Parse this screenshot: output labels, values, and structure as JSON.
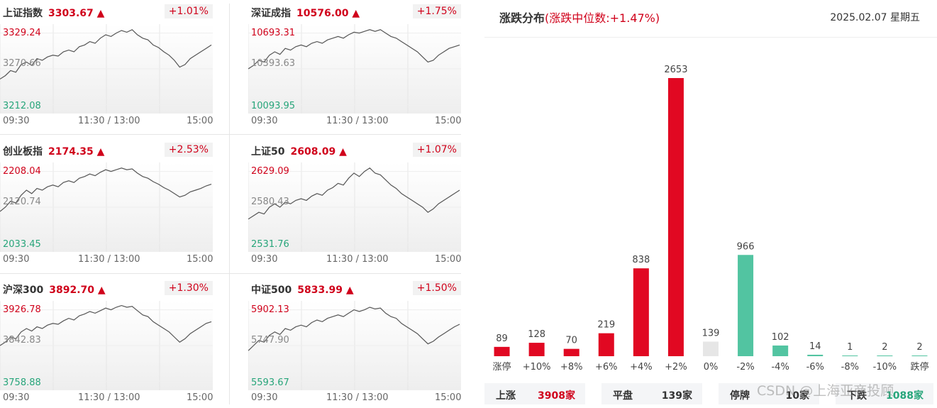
{
  "indices": [
    {
      "name": "上证指数",
      "price": "3303.67",
      "arrow": "▲",
      "pct": "+1.01%",
      "high": "3329.24",
      "mid": "3270.66",
      "low": "3212.08",
      "series": [
        0.38,
        0.42,
        0.48,
        0.46,
        0.55,
        0.58,
        0.54,
        0.62,
        0.6,
        0.64,
        0.66,
        0.65,
        0.7,
        0.72,
        0.7,
        0.76,
        0.78,
        0.82,
        0.8,
        0.86,
        0.9,
        0.88,
        0.92,
        0.95,
        0.93,
        0.96,
        0.9,
        0.86,
        0.84,
        0.78,
        0.75,
        0.7,
        0.66,
        0.6,
        0.52,
        0.55,
        0.62,
        0.66,
        0.7,
        0.74,
        0.78
      ]
    },
    {
      "name": "深证成指",
      "price": "10576.00",
      "arrow": "▲",
      "pct": "+1.75%",
      "high": "10693.31",
      "mid": "10393.63",
      "low": "10093.95",
      "series": [
        0.5,
        0.54,
        0.6,
        0.58,
        0.66,
        0.7,
        0.67,
        0.74,
        0.72,
        0.76,
        0.78,
        0.76,
        0.8,
        0.82,
        0.8,
        0.84,
        0.86,
        0.88,
        0.86,
        0.9,
        0.93,
        0.92,
        0.94,
        0.96,
        0.94,
        0.96,
        0.92,
        0.88,
        0.86,
        0.82,
        0.78,
        0.74,
        0.7,
        0.64,
        0.58,
        0.6,
        0.66,
        0.7,
        0.74,
        0.76,
        0.78
      ]
    },
    {
      "name": "创业板指",
      "price": "2174.35",
      "arrow": "▲",
      "pct": "+2.53%",
      "high": "2208.04",
      "mid": "2120.74",
      "low": "2033.45",
      "series": [
        0.45,
        0.5,
        0.57,
        0.55,
        0.64,
        0.7,
        0.66,
        0.72,
        0.7,
        0.74,
        0.76,
        0.74,
        0.79,
        0.81,
        0.79,
        0.84,
        0.86,
        0.89,
        0.87,
        0.91,
        0.94,
        0.92,
        0.94,
        0.96,
        0.94,
        0.95,
        0.9,
        0.86,
        0.84,
        0.8,
        0.77,
        0.73,
        0.7,
        0.66,
        0.62,
        0.64,
        0.68,
        0.7,
        0.72,
        0.75,
        0.77
      ]
    },
    {
      "name": "上证50",
      "price": "2608.09",
      "arrow": "▲",
      "pct": "+1.07%",
      "high": "2629.09",
      "mid": "2580.43",
      "low": "2531.76",
      "series": [
        0.36,
        0.4,
        0.44,
        0.42,
        0.5,
        0.54,
        0.5,
        0.56,
        0.54,
        0.58,
        0.6,
        0.58,
        0.63,
        0.66,
        0.64,
        0.7,
        0.73,
        0.78,
        0.76,
        0.84,
        0.9,
        0.86,
        0.92,
        0.96,
        0.9,
        0.88,
        0.82,
        0.76,
        0.72,
        0.66,
        0.62,
        0.58,
        0.54,
        0.5,
        0.44,
        0.48,
        0.54,
        0.58,
        0.62,
        0.66,
        0.7
      ]
    },
    {
      "name": "沪深300",
      "price": "3892.70",
      "arrow": "▲",
      "pct": "+1.30%",
      "high": "3926.78",
      "mid": "3842.83",
      "low": "3758.88",
      "series": [
        0.5,
        0.54,
        0.6,
        0.58,
        0.66,
        0.7,
        0.67,
        0.72,
        0.7,
        0.74,
        0.76,
        0.75,
        0.79,
        0.82,
        0.8,
        0.85,
        0.87,
        0.9,
        0.88,
        0.91,
        0.94,
        0.92,
        0.95,
        0.97,
        0.95,
        0.96,
        0.91,
        0.86,
        0.84,
        0.78,
        0.74,
        0.7,
        0.66,
        0.6,
        0.54,
        0.58,
        0.64,
        0.68,
        0.72,
        0.76,
        0.78
      ]
    },
    {
      "name": "中证500",
      "price": "5833.99",
      "arrow": "▲",
      "pct": "+1.50%",
      "high": "5902.13",
      "mid": "5747.90",
      "low": "5593.67",
      "series": [
        0.44,
        0.5,
        0.56,
        0.54,
        0.62,
        0.66,
        0.63,
        0.7,
        0.68,
        0.72,
        0.74,
        0.72,
        0.77,
        0.8,
        0.78,
        0.82,
        0.84,
        0.86,
        0.84,
        0.88,
        0.92,
        0.9,
        0.92,
        0.95,
        0.93,
        0.94,
        0.88,
        0.84,
        0.82,
        0.76,
        0.72,
        0.68,
        0.64,
        0.58,
        0.52,
        0.55,
        0.6,
        0.64,
        0.68,
        0.72,
        0.75
      ]
    }
  ],
  "time_labels": {
    "start": "09:30",
    "mid": "11:30 / 13:00",
    "end": "15:00"
  },
  "distribution": {
    "title": "涨跌分布",
    "subtitle": "(涨跌中位数:+1.47%)",
    "date": "2025.02.07 星期五"
  },
  "chart_data": {
    "type": "bar",
    "categories": [
      "涨停",
      "+10%",
      "+8%",
      "+6%",
      "+4%",
      "+2%",
      "0%",
      "-2%",
      "-4%",
      "-6%",
      "-8%",
      "-10%",
      "跌停"
    ],
    "values": [
      89,
      128,
      70,
      219,
      838,
      2653,
      139,
      966,
      102,
      14,
      1,
      2,
      2
    ],
    "value_labels": [
      "89",
      "128",
      "70",
      "219",
      "838",
      "2653",
      "139",
      "966",
      "102",
      "14",
      "1",
      "2",
      "2"
    ],
    "colors": [
      "#e10822",
      "#e10822",
      "#e10822",
      "#e10822",
      "#e10822",
      "#e10822",
      "#e6e6e6",
      "#52c4a1",
      "#52c4a1",
      "#52c4a1",
      "#52c4a1",
      "#52c4a1",
      "#52c4a1"
    ],
    "ylim": [
      0,
      2653
    ]
  },
  "stats": [
    {
      "key": "上涨",
      "value": "3908家",
      "color": "#d0021b"
    },
    {
      "key": "平盘",
      "value": "139家",
      "color": "#333333"
    },
    {
      "key": "停牌",
      "value": "10家",
      "color": "#333333"
    },
    {
      "key": "下跌",
      "value": "1088家",
      "color": "#27a57a"
    }
  ],
  "watermark": "CSDN @上海亚商投顾",
  "colors": {
    "up": "#d0021b",
    "down": "#27a57a",
    "neutral": "#e6e6e6"
  }
}
